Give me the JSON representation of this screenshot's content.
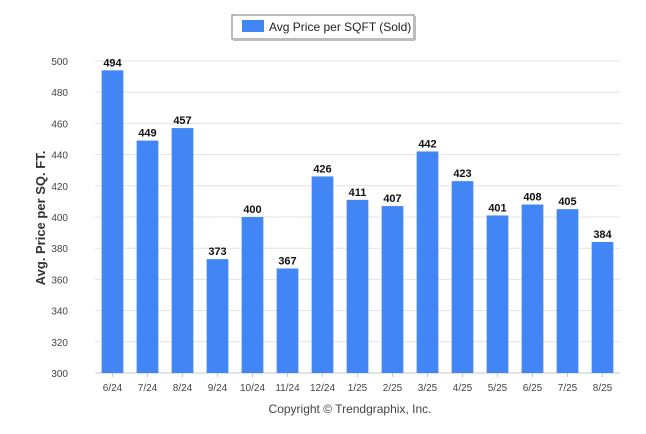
{
  "chart_data": {
    "type": "bar",
    "title": "",
    "xlabel": "",
    "ylabel": "Avg. Price per SQ. FT.",
    "legend": {
      "label": "Avg Price per SQFT (Sold)",
      "position": "top-center"
    },
    "footer": "Copyright © Trendgraphix, Inc.",
    "categories": [
      "6/24",
      "7/24",
      "8/24",
      "9/24",
      "10/24",
      "11/24",
      "12/24",
      "1/25",
      "2/25",
      "3/25",
      "4/25",
      "5/25",
      "6/25",
      "7/25",
      "8/25"
    ],
    "series": [
      {
        "name": "Avg Price per SQFT (Sold)",
        "values": [
          494,
          449,
          457,
          373,
          400,
          367,
          426,
          411,
          407,
          442,
          423,
          401,
          408,
          405,
          384
        ]
      }
    ],
    "ylim": [
      300,
      500
    ],
    "yticks": [
      300,
      320,
      340,
      360,
      380,
      400,
      420,
      440,
      460,
      480,
      500
    ],
    "grid": true,
    "colors": {
      "bar": "#4285F4",
      "grid": "#e3e3e3",
      "axis_text": "#444444",
      "label_text": "#111111"
    }
  }
}
